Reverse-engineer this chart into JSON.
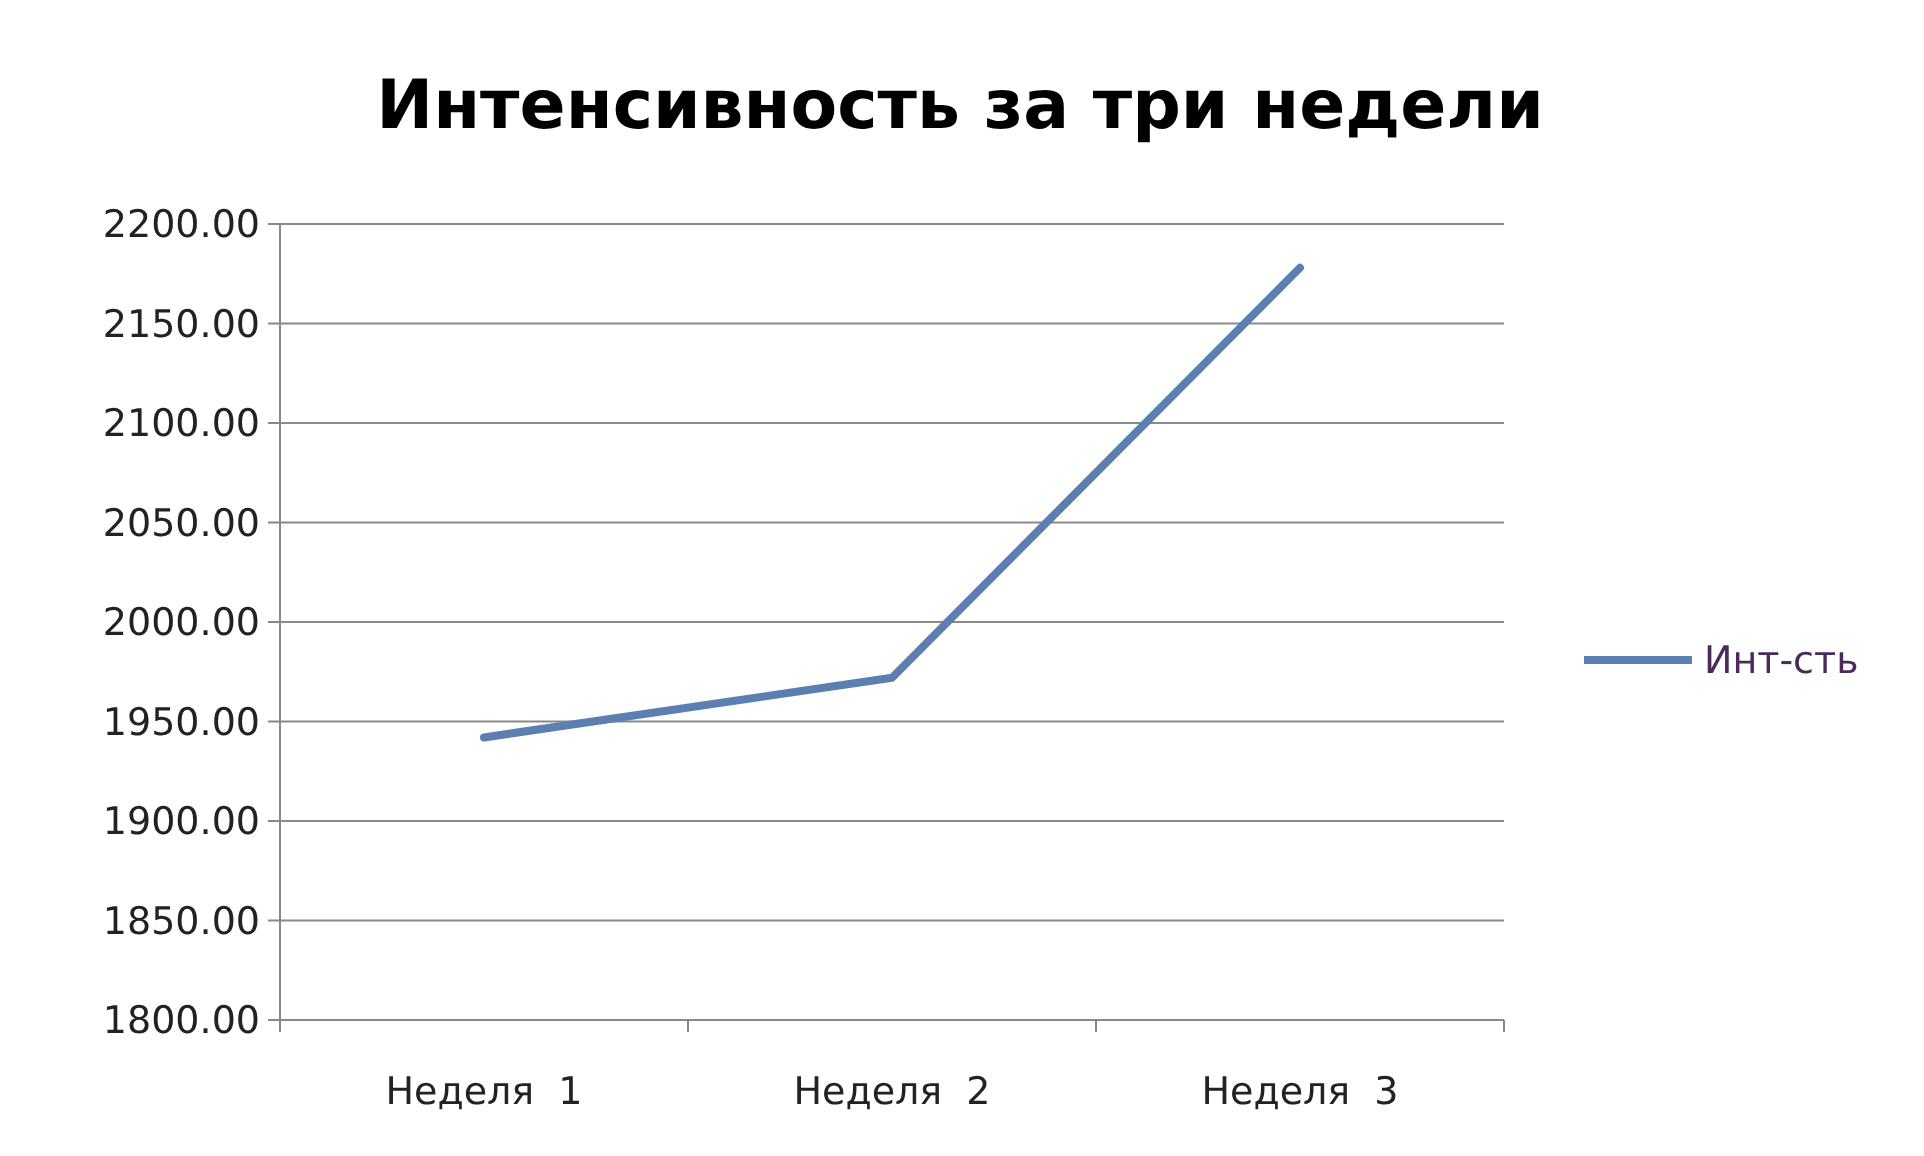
{
  "chart_data": {
    "type": "line",
    "title": "Интенсивность за три недели",
    "categories": [
      "Неделя  1",
      "Неделя  2",
      "Неделя  3"
    ],
    "series": [
      {
        "name": "Инт-сть",
        "color": "#5b7fb0",
        "values": [
          1942,
          1972,
          2178
        ]
      }
    ],
    "ylim": [
      1800,
      2200
    ],
    "yticks": [
      {
        "value": 1800,
        "label": "1800.00"
      },
      {
        "value": 1850,
        "label": "1850.00"
      },
      {
        "value": 1900,
        "label": "1900.00"
      },
      {
        "value": 1950,
        "label": "1950.00"
      },
      {
        "value": 2000,
        "label": "2000.00"
      },
      {
        "value": 2050,
        "label": "2050.00"
      },
      {
        "value": 2100,
        "label": "2100.00"
      },
      {
        "value": 2150,
        "label": "2150.00"
      },
      {
        "value": 2200,
        "label": "2200.00"
      }
    ],
    "grid": "y",
    "legend": "right",
    "marker": "none",
    "line_style": "solid"
  }
}
